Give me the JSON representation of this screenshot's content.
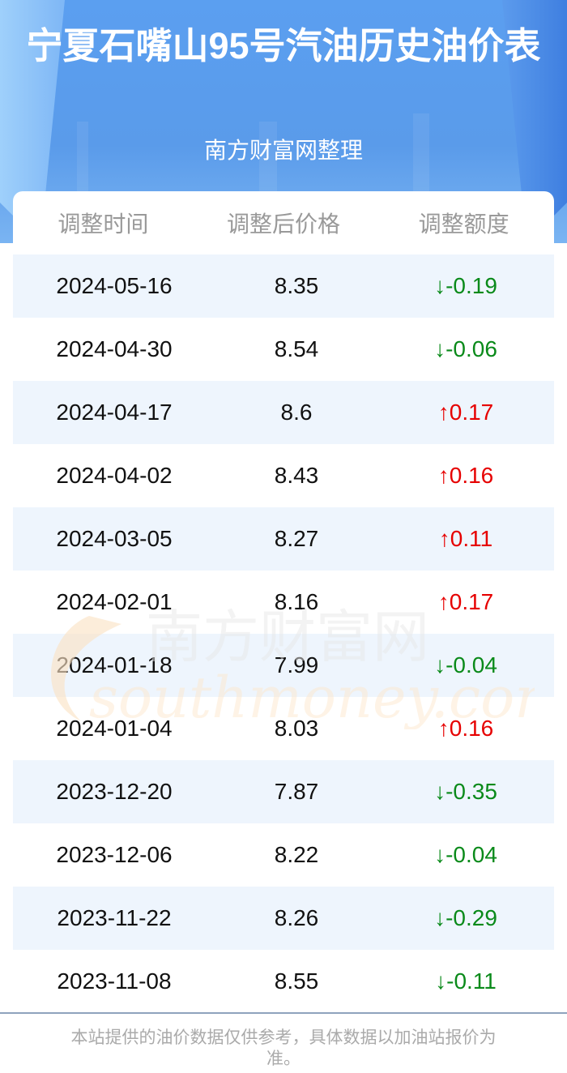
{
  "header": {
    "title": "宁夏石嘴山95号汽油历史油价表",
    "subtitle": "南方财富网整理"
  },
  "table": {
    "columns": [
      "调整时间",
      "调整后价格",
      "调整额度"
    ],
    "rows": [
      {
        "date": "2024-05-16",
        "price": "8.35",
        "change": "↓-0.19",
        "dir": "down"
      },
      {
        "date": "2024-04-30",
        "price": "8.54",
        "change": "↓-0.06",
        "dir": "down"
      },
      {
        "date": "2024-04-17",
        "price": "8.6",
        "change": "↑0.17",
        "dir": "up"
      },
      {
        "date": "2024-04-02",
        "price": "8.43",
        "change": "↑0.16",
        "dir": "up"
      },
      {
        "date": "2024-03-05",
        "price": "8.27",
        "change": "↑0.11",
        "dir": "up"
      },
      {
        "date": "2024-02-01",
        "price": "8.16",
        "change": "↑0.17",
        "dir": "up"
      },
      {
        "date": "2024-01-18",
        "price": "7.99",
        "change": "↓-0.04",
        "dir": "down"
      },
      {
        "date": "2024-01-04",
        "price": "8.03",
        "change": "↑0.16",
        "dir": "up"
      },
      {
        "date": "2023-12-20",
        "price": "7.87",
        "change": "↓-0.35",
        "dir": "down"
      },
      {
        "date": "2023-12-06",
        "price": "8.22",
        "change": "↓-0.04",
        "dir": "down"
      },
      {
        "date": "2023-11-22",
        "price": "8.26",
        "change": "↓-0.29",
        "dir": "down"
      },
      {
        "date": "2023-11-08",
        "price": "8.55",
        "change": "↓-0.11",
        "dir": "down"
      }
    ]
  },
  "watermark": {
    "cn": "南方财富网",
    "en": "southmoney.com"
  },
  "colors": {
    "up": "#e60000",
    "down": "#0a8a1a",
    "stripe": "#eef5fd",
    "hero": "#5a9bea"
  },
  "footer": {
    "note": "本站提供的油价数据仅供参考，具体数据以加油站报价为准。"
  }
}
